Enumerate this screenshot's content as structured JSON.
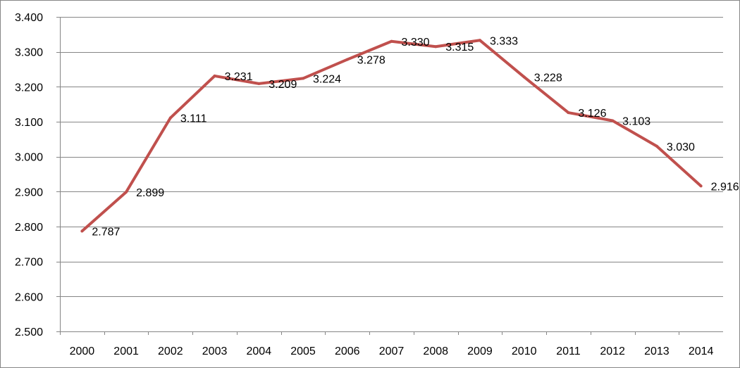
{
  "chart_data": {
    "type": "line",
    "title": "",
    "xlabel": "",
    "ylabel": "",
    "categories": [
      "2000",
      "2001",
      "2002",
      "2003",
      "2004",
      "2005",
      "2006",
      "2007",
      "2008",
      "2009",
      "2010",
      "2011",
      "2012",
      "2013",
      "2014"
    ],
    "series": [
      {
        "values": [
          2.787,
          2.899,
          3.111,
          3.231,
          3.209,
          3.224,
          3.278,
          3.33,
          3.315,
          3.333,
          3.228,
          3.126,
          3.103,
          3.03,
          2.916
        ],
        "data_labels": [
          "2.787",
          "2.899",
          "3.111",
          "3.231",
          "3.209",
          "3.224",
          "3.278",
          "3.330",
          "3.315",
          "3.333",
          "3.228",
          "3.126",
          "3.103",
          "3.030",
          "2.916"
        ],
        "color": "#C0504D"
      }
    ],
    "ylim": [
      2.5,
      3.4
    ],
    "y_ticks": [
      2.5,
      2.6,
      2.7,
      2.8,
      2.9,
      3.0,
      3.1,
      3.2,
      3.3,
      3.4
    ],
    "y_tick_labels": [
      "2.500",
      "2.600",
      "2.700",
      "2.800",
      "2.900",
      "3.000",
      "3.100",
      "3.200",
      "3.300",
      "3.400"
    ],
    "grid": true,
    "legend": "none",
    "colors": {
      "line": "#C0504D",
      "gridline": "#868686",
      "axis": "#868686",
      "border": "#868686",
      "text": "#000000"
    }
  }
}
